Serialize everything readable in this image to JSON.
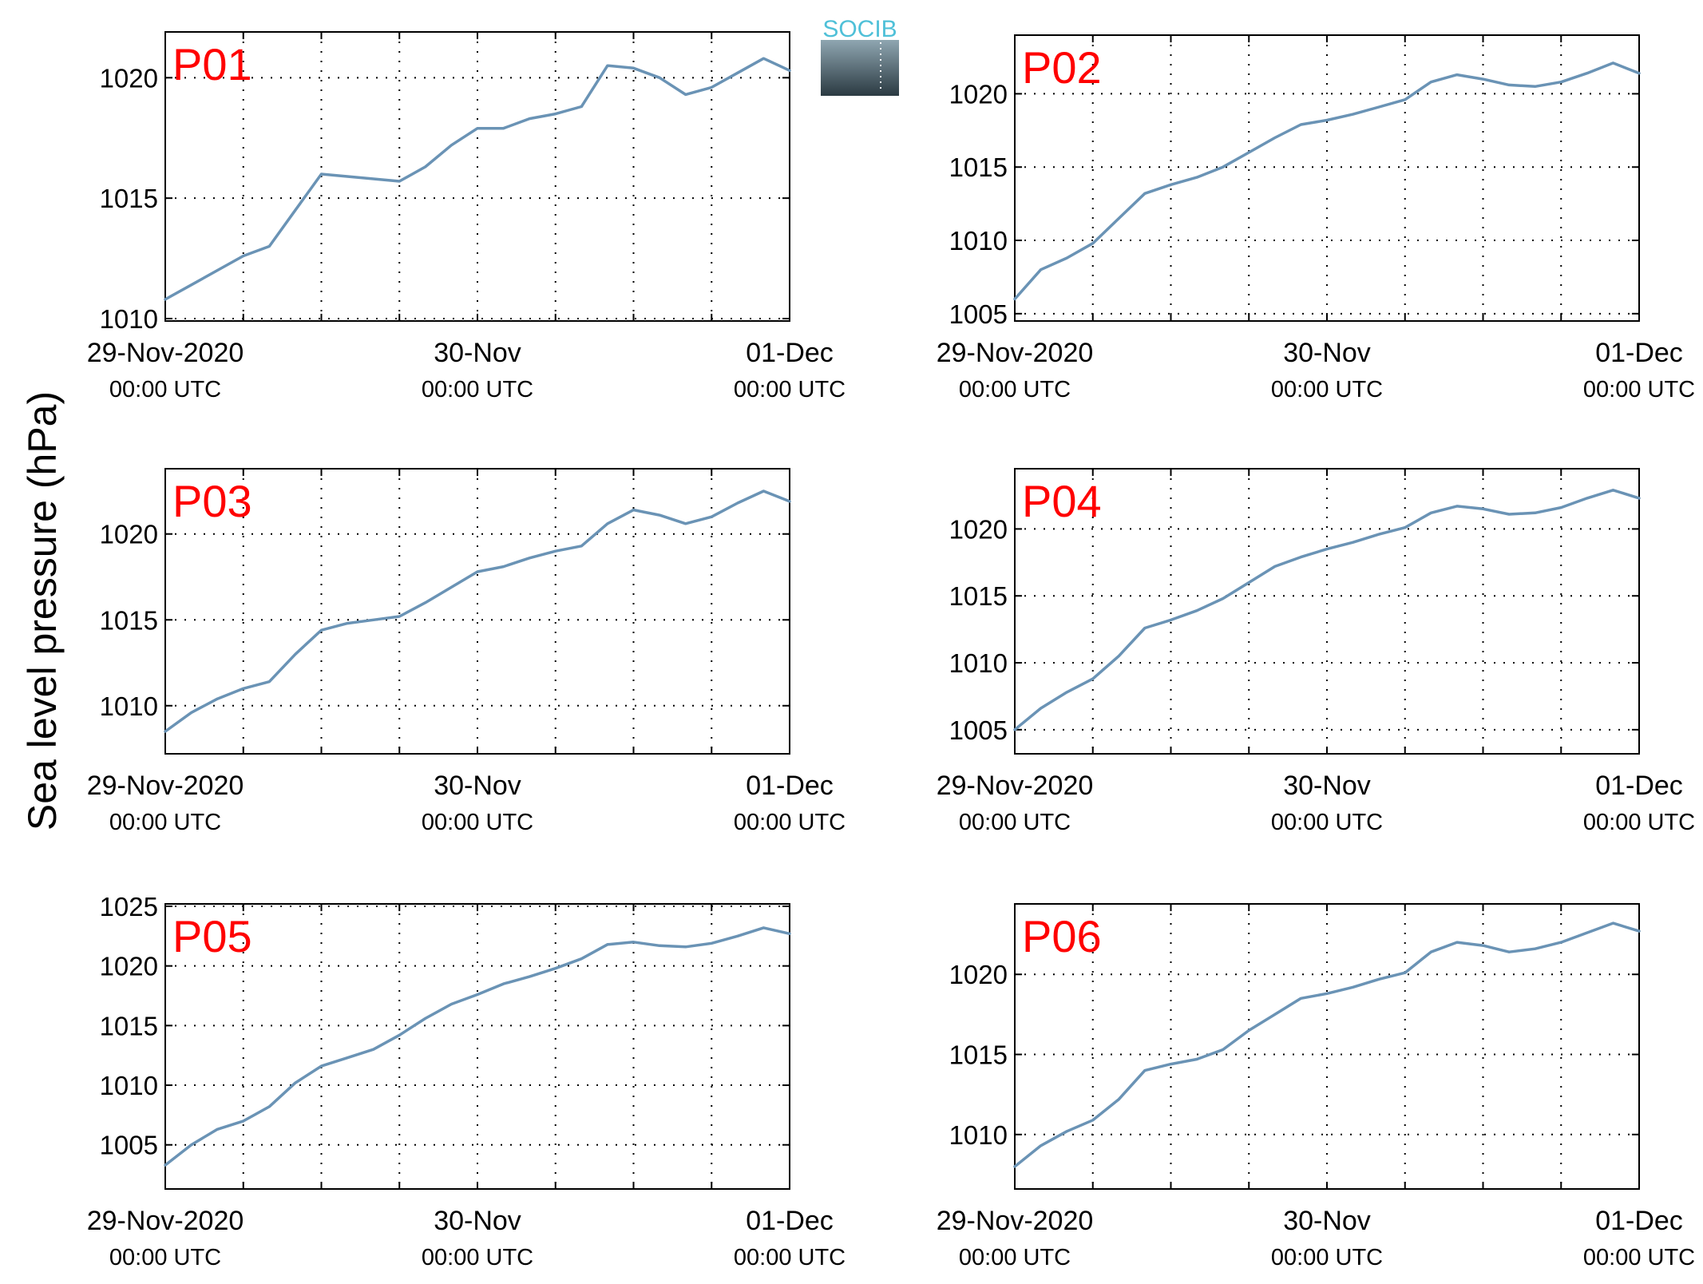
{
  "ylabel": "Sea level pressure (hPa)",
  "logo_text": "SOCIB",
  "colors": {
    "series": "#6a93b5",
    "panel_tag": "#ff0000",
    "logo_text": "#4fc0d8",
    "logo_top": "#8fa6b1",
    "logo_bottom": "#2b3a42"
  },
  "x_tick_labels": [
    {
      "main": "29-Nov-2020",
      "sub": "00:00 UTC"
    },
    {
      "main": "30-Nov",
      "sub": "00:00 UTC"
    },
    {
      "main": "01-Dec",
      "sub": "00:00 UTC"
    }
  ],
  "chart_data": [
    {
      "type": "line",
      "panel": "P01",
      "xlim": [
        "2020-11-29T00:00Z",
        "2020-12-01T00:00Z"
      ],
      "ylim": [
        1009.9,
        1021.9
      ],
      "yticks": [
        1010,
        1015,
        1020
      ],
      "grid": true,
      "x_hours": [
        0,
        2,
        4,
        6,
        8,
        10,
        12,
        14,
        16,
        18,
        20,
        22,
        24,
        26,
        28,
        30,
        32,
        34,
        36,
        38,
        40,
        42,
        44,
        46,
        48
      ],
      "values": [
        1010.8,
        1011.4,
        1012.0,
        1012.6,
        1013.0,
        1014.5,
        1016.0,
        1015.9,
        1015.8,
        1015.7,
        1016.3,
        1017.2,
        1017.9,
        1017.9,
        1018.3,
        1018.5,
        1018.8,
        1020.5,
        1020.4,
        1020.0,
        1019.3,
        1019.6,
        1020.2,
        1020.8,
        1020.3
      ]
    },
    {
      "type": "line",
      "panel": "P02",
      "xlim": [
        "2020-11-29T00:00Z",
        "2020-12-01T00:00Z"
      ],
      "ylim": [
        1004.5,
        1024.0
      ],
      "yticks": [
        1005,
        1010,
        1015,
        1020
      ],
      "grid": true,
      "x_hours": [
        0,
        2,
        4,
        6,
        8,
        10,
        12,
        14,
        16,
        18,
        20,
        22,
        24,
        26,
        28,
        30,
        32,
        34,
        36,
        38,
        40,
        42,
        44,
        46,
        48
      ],
      "values": [
        1006.0,
        1008.0,
        1008.8,
        1009.8,
        1011.5,
        1013.2,
        1013.8,
        1014.3,
        1015.0,
        1016.0,
        1017.0,
        1017.9,
        1018.2,
        1018.6,
        1019.1,
        1019.6,
        1020.8,
        1021.3,
        1021.0,
        1020.6,
        1020.5,
        1020.8,
        1021.4,
        1022.1,
        1021.4
      ]
    },
    {
      "type": "line",
      "panel": "P03",
      "xlim": [
        "2020-11-29T00:00Z",
        "2020-12-01T00:00Z"
      ],
      "ylim": [
        1007.2,
        1023.8
      ],
      "yticks": [
        1010,
        1015,
        1020
      ],
      "grid": true,
      "x_hours": [
        0,
        2,
        4,
        6,
        8,
        10,
        12,
        14,
        16,
        18,
        20,
        22,
        24,
        26,
        28,
        30,
        32,
        34,
        36,
        38,
        40,
        42,
        44,
        46,
        48
      ],
      "values": [
        1008.5,
        1009.6,
        1010.4,
        1011.0,
        1011.4,
        1013.0,
        1014.4,
        1014.8,
        1015.0,
        1015.2,
        1016.0,
        1016.9,
        1017.8,
        1018.1,
        1018.6,
        1019.0,
        1019.3,
        1020.6,
        1021.4,
        1021.1,
        1020.6,
        1021.0,
        1021.8,
        1022.5,
        1021.9
      ]
    },
    {
      "type": "line",
      "panel": "P04",
      "xlim": [
        "2020-11-29T00:00Z",
        "2020-12-01T00:00Z"
      ],
      "ylim": [
        1003.2,
        1024.5
      ],
      "yticks": [
        1005,
        1010,
        1015,
        1020
      ],
      "grid": true,
      "x_hours": [
        0,
        2,
        4,
        6,
        8,
        10,
        12,
        14,
        16,
        18,
        20,
        22,
        24,
        26,
        28,
        30,
        32,
        34,
        36,
        38,
        40,
        42,
        44,
        46,
        48
      ],
      "values": [
        1005.0,
        1006.6,
        1007.8,
        1008.8,
        1010.5,
        1012.6,
        1013.2,
        1013.9,
        1014.8,
        1016.0,
        1017.2,
        1017.9,
        1018.5,
        1019.0,
        1019.6,
        1020.1,
        1021.2,
        1021.7,
        1021.5,
        1021.1,
        1021.2,
        1021.6,
        1022.3,
        1022.9,
        1022.3
      ]
    },
    {
      "type": "line",
      "panel": "P05",
      "xlim": [
        "2020-11-29T00:00Z",
        "2020-12-01T00:00Z"
      ],
      "ylim": [
        1001.3,
        1025.2
      ],
      "yticks": [
        1005,
        1010,
        1015,
        1020,
        1025
      ],
      "grid": true,
      "x_hours": [
        0,
        2,
        4,
        6,
        8,
        10,
        12,
        14,
        16,
        18,
        20,
        22,
        24,
        26,
        28,
        30,
        32,
        34,
        36,
        38,
        40,
        42,
        44,
        46,
        48
      ],
      "values": [
        1003.3,
        1005.0,
        1006.3,
        1007.0,
        1008.2,
        1010.2,
        1011.6,
        1012.3,
        1013.0,
        1014.2,
        1015.6,
        1016.8,
        1017.6,
        1018.5,
        1019.1,
        1019.8,
        1020.6,
        1021.8,
        1022.0,
        1021.7,
        1021.6,
        1021.9,
        1022.5,
        1023.2,
        1022.7
      ]
    },
    {
      "type": "line",
      "panel": "P06",
      "xlim": [
        "2020-11-29T00:00Z",
        "2020-12-01T00:00Z"
      ],
      "ylim": [
        1006.6,
        1024.4
      ],
      "yticks": [
        1010,
        1015,
        1020
      ],
      "grid": true,
      "x_hours": [
        0,
        2,
        4,
        6,
        8,
        10,
        12,
        14,
        16,
        18,
        20,
        22,
        24,
        26,
        28,
        30,
        32,
        34,
        36,
        38,
        40,
        42,
        44,
        46,
        48
      ],
      "values": [
        1008.0,
        1009.3,
        1010.2,
        1010.9,
        1012.2,
        1014.0,
        1014.4,
        1014.7,
        1015.3,
        1016.5,
        1017.5,
        1018.5,
        1018.8,
        1019.2,
        1019.7,
        1020.1,
        1021.4,
        1022.0,
        1021.8,
        1021.4,
        1021.6,
        1022.0,
        1022.6,
        1023.2,
        1022.7
      ]
    }
  ]
}
